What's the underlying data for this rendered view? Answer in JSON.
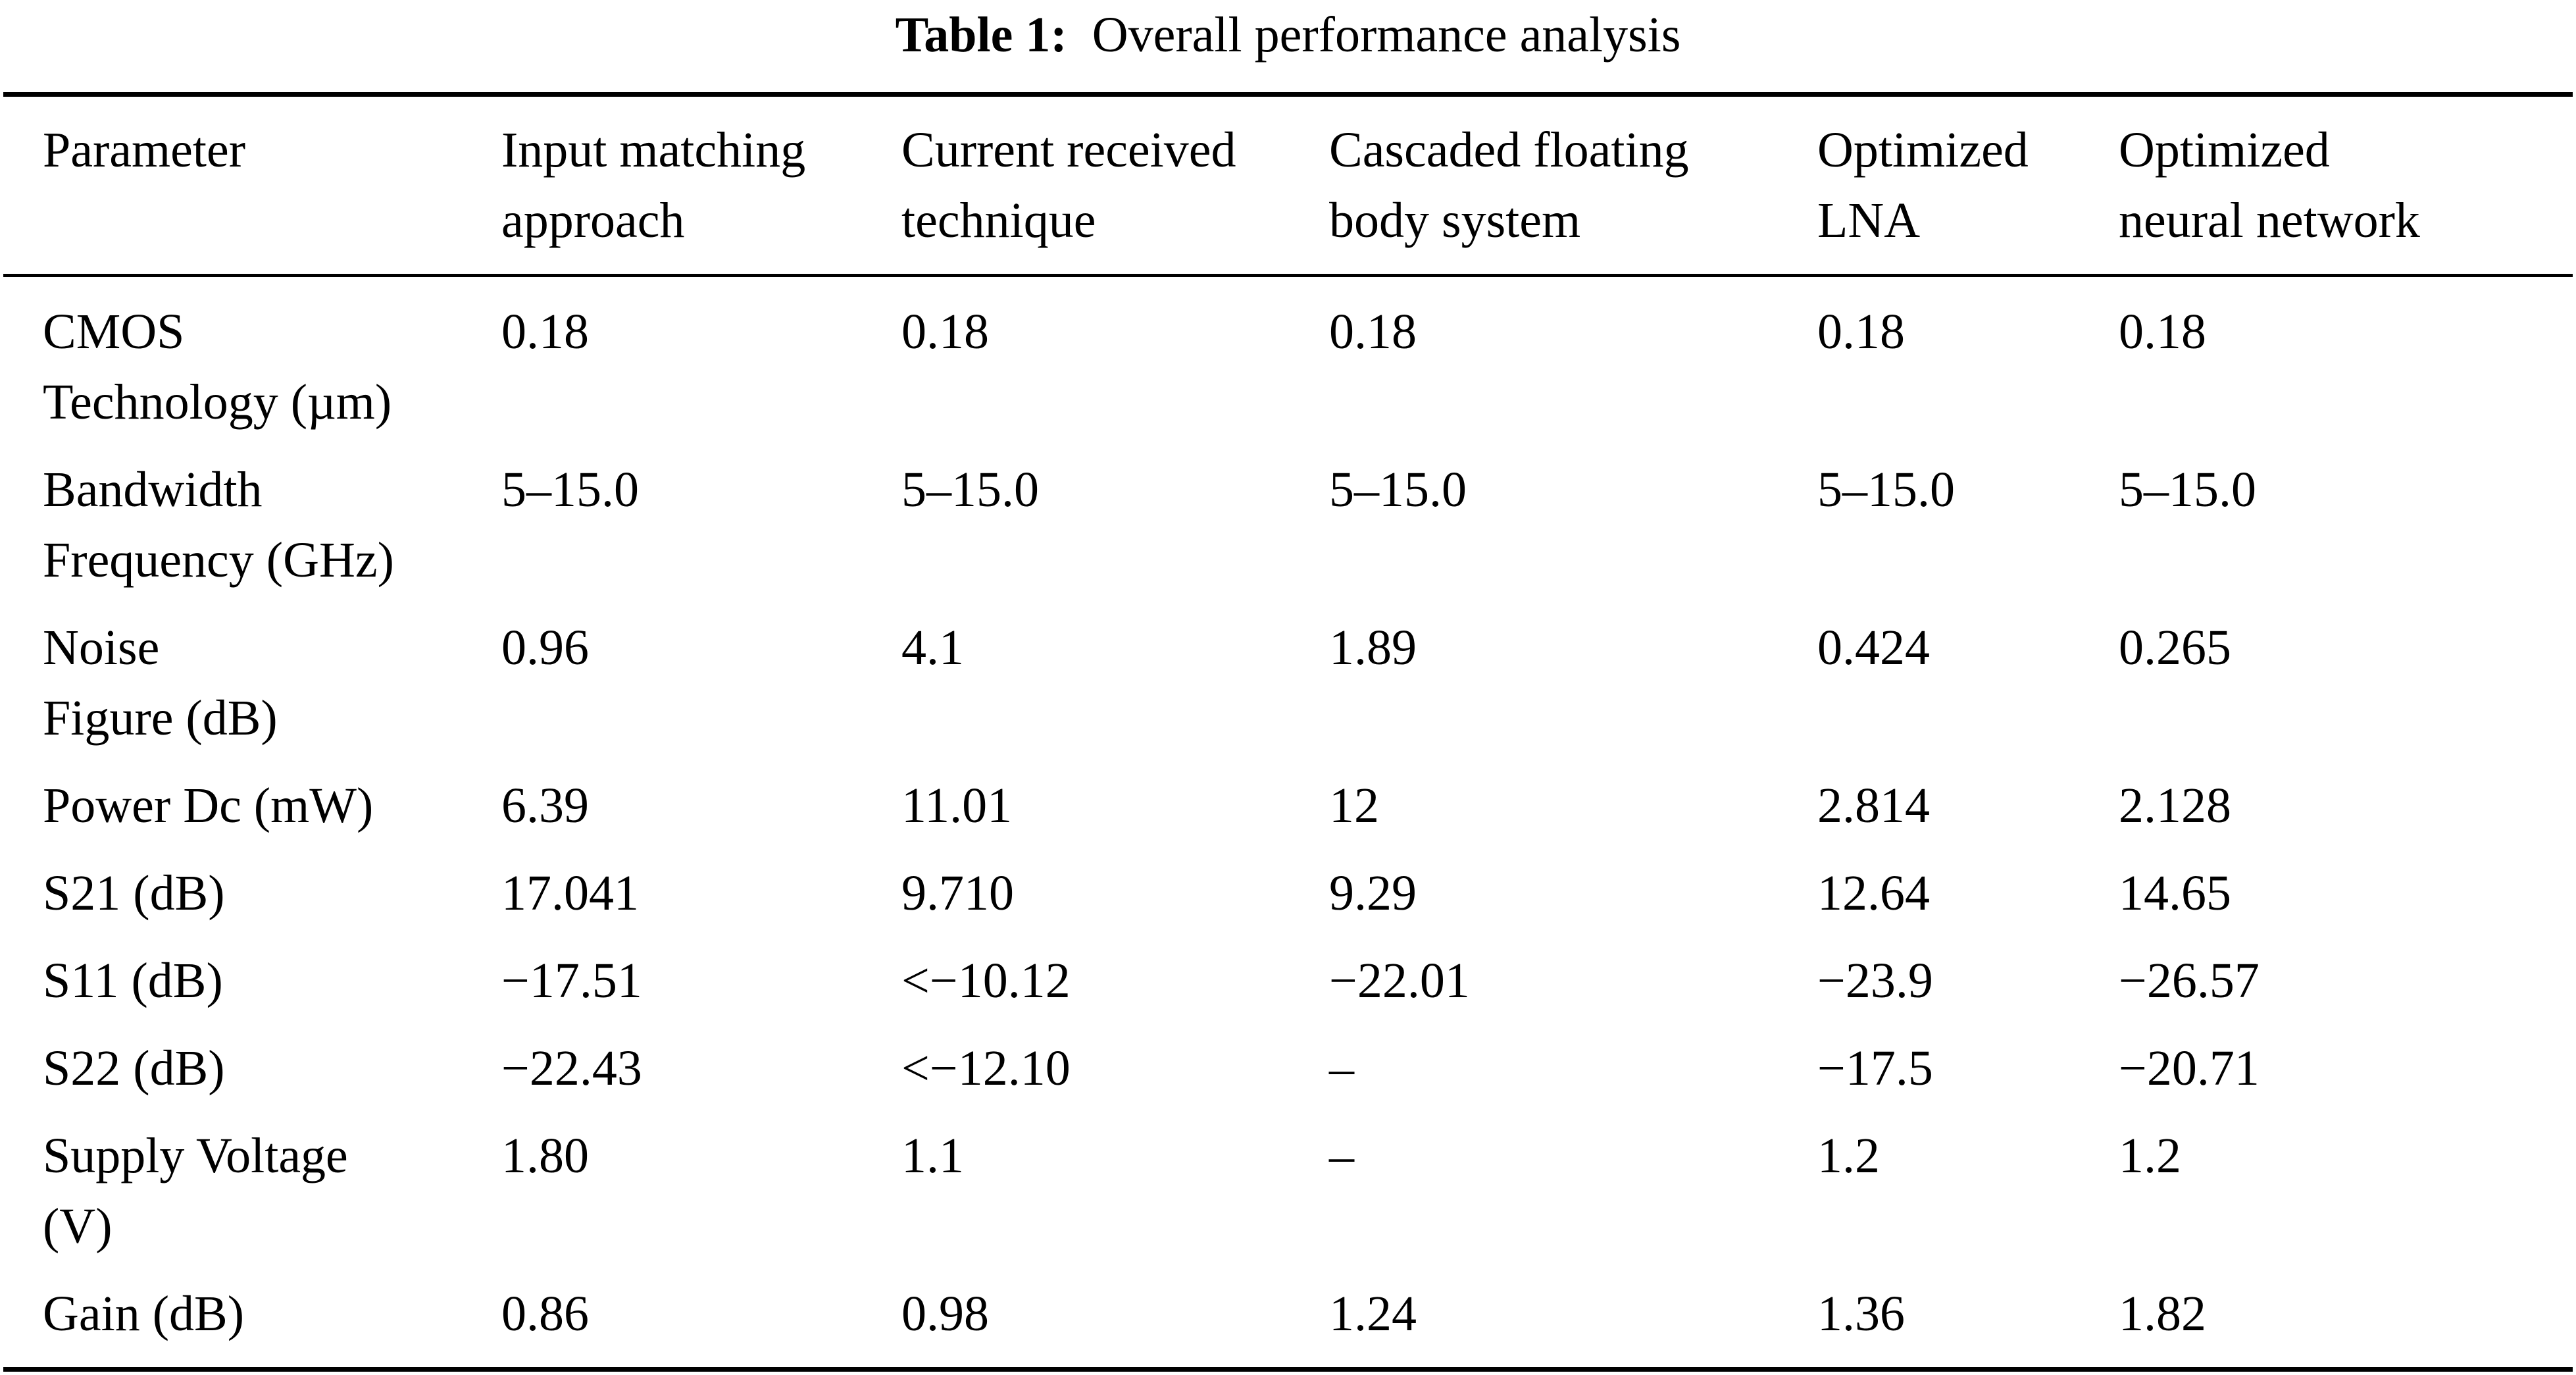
{
  "title": {
    "label": "Table 1:",
    "text": "Overall performance analysis"
  },
  "table": {
    "headers": [
      "Parameter",
      "Input matching\napproach",
      "Current received\ntechnique",
      "Cascaded floating\nbody system",
      "Optimized\nLNA",
      "Optimized\nneural network"
    ],
    "rows": [
      [
        "CMOS\nTechnology (µm)",
        "0.18",
        "0.18",
        "0.18",
        "0.18",
        "0.18"
      ],
      [
        "Bandwidth\nFrequency (GHz)",
        "5–15.0",
        "5–15.0",
        "5–15.0",
        "5–15.0",
        "5–15.0"
      ],
      [
        "Noise\nFigure (dB)",
        "0.96",
        "4.1",
        "1.89",
        "0.424",
        "0.265"
      ],
      [
        "Power Dc (mW)",
        "6.39",
        "11.01",
        "12",
        "2.814",
        "2.128"
      ],
      [
        "S21 (dB)",
        "17.041",
        "9.710",
        "9.29",
        "12.64",
        "14.65"
      ],
      [
        "S11 (dB)",
        "−17.51",
        "<−10.12",
        "−22.01",
        "−23.9",
        "−26.57"
      ],
      [
        "S22 (dB)",
        "−22.43",
        "<−12.10",
        "–",
        "−17.5",
        "−20.71"
      ],
      [
        "Supply Voltage\n(V)",
        "1.80",
        "1.1",
        "–",
        "1.2",
        "1.2"
      ],
      [
        "Gain (dB)",
        "0.86",
        "0.98",
        "1.24",
        "1.36",
        "1.82"
      ]
    ]
  }
}
